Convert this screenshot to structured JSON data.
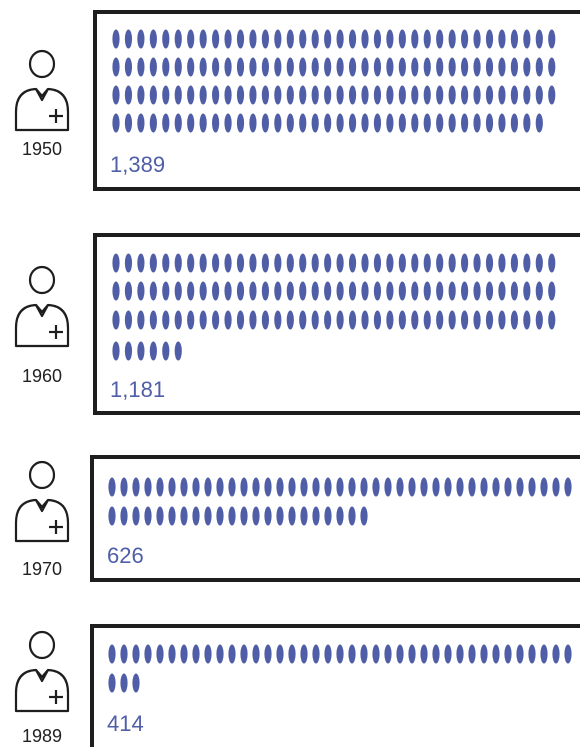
{
  "chart_data": {
    "type": "pictograph",
    "categories": [
      "1950",
      "1960",
      "1970",
      "1989"
    ],
    "values": [
      1389,
      1181,
      626,
      414
    ],
    "value_labels": [
      "1,389",
      "1,181",
      "626",
      "414"
    ],
    "dot_counts": [
      143,
      114,
      61,
      42
    ],
    "colors": {
      "dot": "#4f5ea6",
      "label": "#4f5ea6",
      "frame": "#1e1e1e",
      "icon": "#1e1e1e"
    },
    "icon": "doctor-person-plus-icon"
  }
}
